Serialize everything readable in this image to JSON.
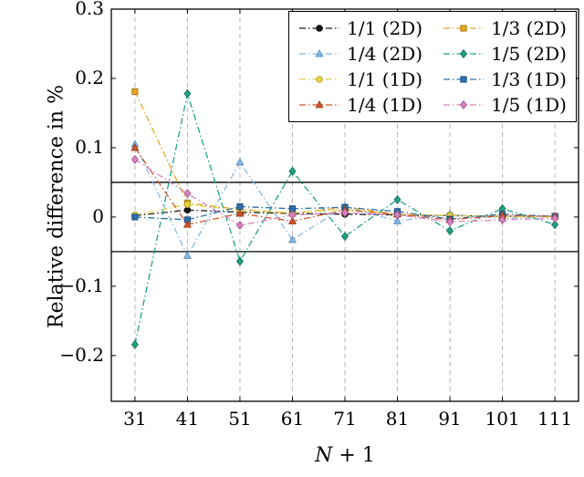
{
  "figure": {
    "ylabel": "Relative difference in %",
    "xlabel_var": "N",
    "xlabel_rest": " + 1"
  },
  "chart_data": {
    "type": "line",
    "title": "",
    "xlabel": "N + 1",
    "ylabel": "Relative difference in %",
    "x": [
      31,
      41,
      51,
      61,
      71,
      81,
      91,
      101,
      111
    ],
    "xlim": [
      26.5,
      115.5
    ],
    "ylim": [
      -0.266,
      0.3
    ],
    "x_tick_labels": [
      "31",
      "41",
      "51",
      "61",
      "71",
      "81",
      "91",
      "101",
      "111"
    ],
    "y_ticks": [
      0.3,
      0.2,
      0.1,
      0,
      -0.1,
      -0.2
    ],
    "y_tick_labels": [
      "0.3",
      "0.2",
      "0.1",
      "0",
      "−0.1",
      "−0.2"
    ],
    "grid": "vertical-dashed",
    "gridline_color": "#b5b5b5",
    "threshold_lines": [
      0.05,
      -0.05
    ],
    "threshold_color": "#000000",
    "legend_position": "top-right",
    "line_style": "dash-dot",
    "series": [
      {
        "name": "1/1 (2D)",
        "marker": "circle",
        "color": "#1a1a1a",
        "edge": "#000000",
        "values": [
          0.002,
          0.01,
          0.007,
          0.005,
          0.004,
          0.003,
          0.002,
          0.001,
          0.001
        ]
      },
      {
        "name": "1/3 (2D)",
        "marker": "square",
        "color": "#e5a423",
        "edge": "#b07d14",
        "values": [
          0.181,
          0.02,
          0.011,
          0.005,
          0.014,
          0.004,
          0.002,
          0.001,
          0.001
        ]
      },
      {
        "name": "1/4 (2D)",
        "marker": "triangle",
        "color": "#8bb9e0",
        "edge": "#5f93c2",
        "values": [
          0.105,
          -0.056,
          0.079,
          -0.033,
          0.015,
          -0.006,
          0.004,
          -0.002,
          0.001
        ]
      },
      {
        "name": "1/5 (2D)",
        "marker": "diamond",
        "color": "#21a183",
        "edge": "#157a61",
        "values": [
          -0.184,
          0.178,
          -0.064,
          0.066,
          -0.028,
          0.025,
          -0.02,
          0.012,
          -0.011
        ]
      },
      {
        "name": "1/1 (1D)",
        "marker": "circle",
        "color": "#e8d34a",
        "edge": "#bda723",
        "values": [
          0.003,
          0.018,
          0.01,
          0.006,
          0.011,
          0.004,
          0.002,
          0.001,
          0.0
        ]
      },
      {
        "name": "1/3 (1D)",
        "marker": "square",
        "color": "#2e6fad",
        "edge": "#1d4f82",
        "values": [
          0.0,
          -0.004,
          0.015,
          0.012,
          0.014,
          0.008,
          -0.003,
          0.004,
          0.001
        ]
      },
      {
        "name": "1/4 (1D)",
        "marker": "triangle",
        "color": "#d0562a",
        "edge": "#9e3c17",
        "values": [
          0.1,
          -0.011,
          0.005,
          -0.006,
          0.01,
          0.004,
          -0.004,
          0.002,
          0.001
        ]
      },
      {
        "name": "1/5 (1D)",
        "marker": "diamond",
        "color": "#d685bd",
        "edge": "#ad5d96",
        "values": [
          0.083,
          0.034,
          -0.012,
          0.003,
          0.006,
          0.003,
          -0.007,
          -0.004,
          -0.002
        ]
      }
    ]
  }
}
